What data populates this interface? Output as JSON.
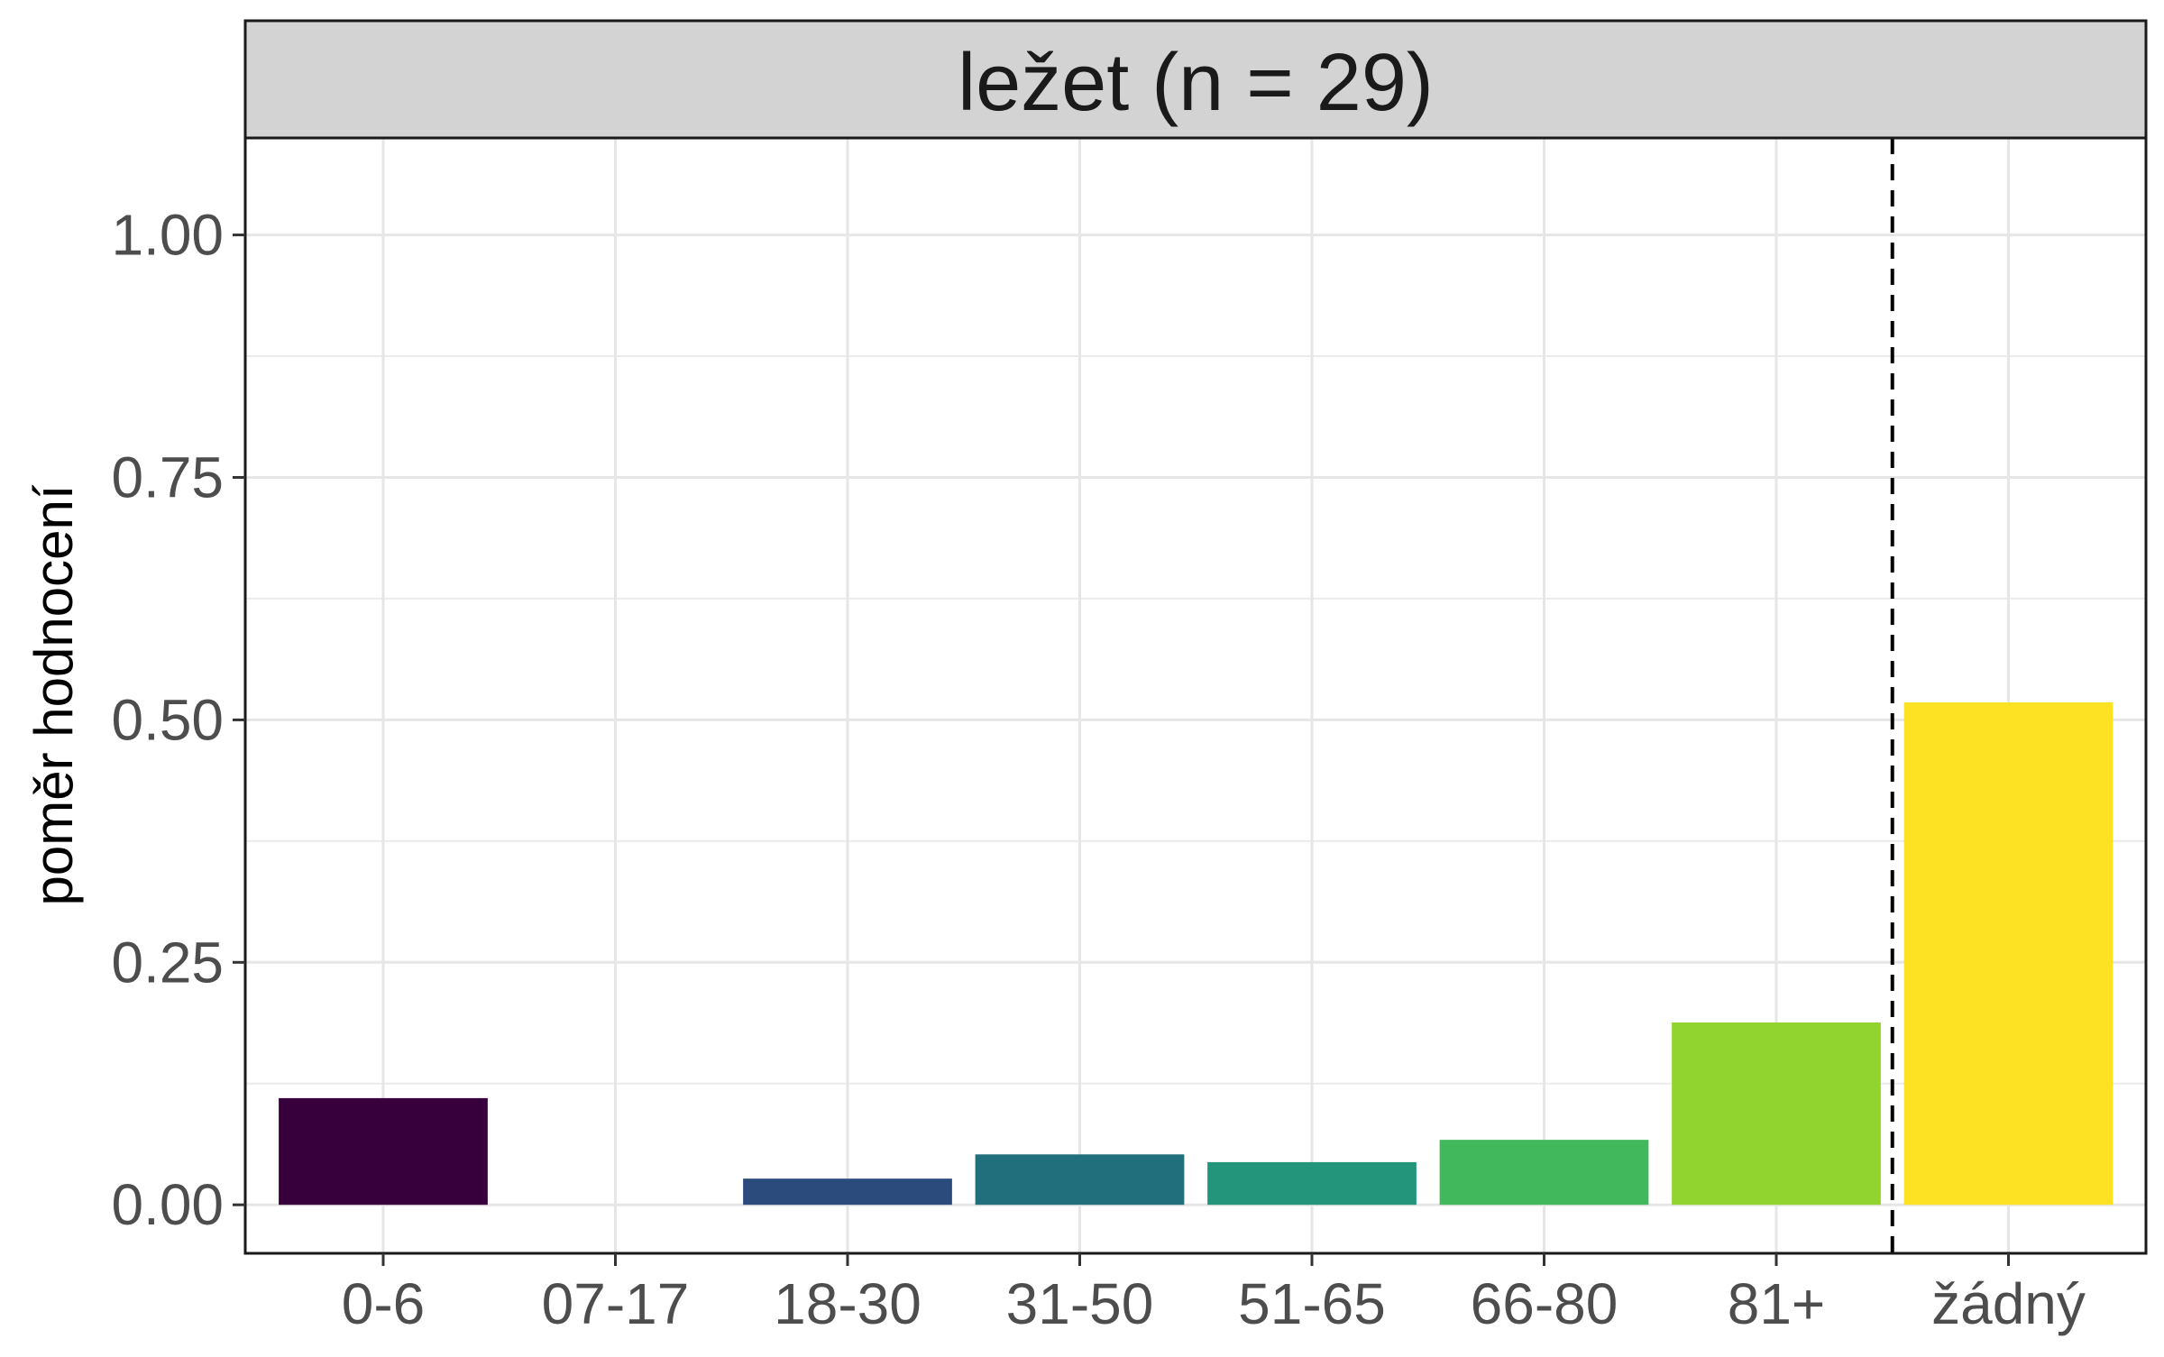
{
  "chart_data": {
    "type": "bar",
    "facet_title": "ležet (n = 29)",
    "ylabel": "poměr hodnocení",
    "xlabel": "",
    "categories": [
      "0-6",
      "07-17",
      "18-30",
      "31-50",
      "51-65",
      "66-80",
      "81+",
      "žádný"
    ],
    "values": [
      0.11,
      0.0,
      0.027,
      0.052,
      0.044,
      0.067,
      0.188,
      0.518
    ],
    "colors": [
      "#37003C",
      "#46337E",
      "#2C4B7D",
      "#216F7D",
      "#22957B",
      "#41B85B",
      "#91D42F",
      "#FCE223"
    ],
    "ylim": [
      -0.05,
      1.1
    ],
    "yticks": [
      0.0,
      0.25,
      0.5,
      0.75,
      1.0
    ],
    "ytick_labels": [
      "0.00",
      "0.25",
      "0.50",
      "0.75",
      "1.00"
    ],
    "grid": true,
    "reference_line": {
      "between": [
        "81+",
        "žádný"
      ],
      "style": "dashed"
    }
  }
}
